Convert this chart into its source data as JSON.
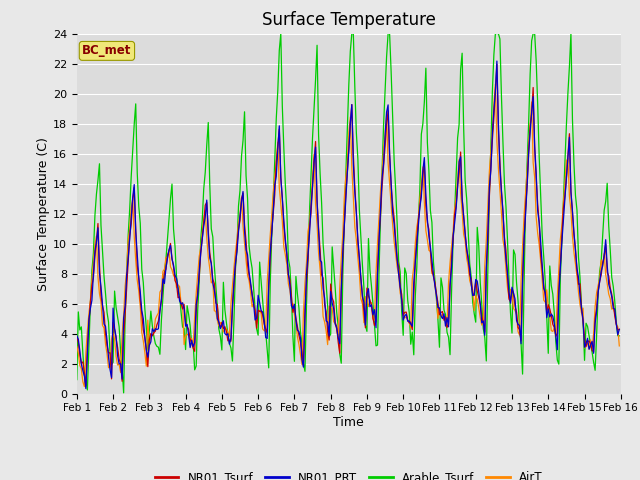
{
  "title": "Surface Temperature",
  "xlabel": "Time",
  "ylabel": "Surface Temperature (C)",
  "ylim": [
    0,
    24
  ],
  "yticks": [
    0,
    2,
    4,
    6,
    8,
    10,
    12,
    14,
    16,
    18,
    20,
    22,
    24
  ],
  "xtick_labels": [
    "Feb 1",
    "Feb 2",
    "Feb 3",
    "Feb 4",
    "Feb 5",
    "Feb 6",
    "Feb 7",
    "Feb 8",
    "Feb 9",
    "Feb 10",
    "Feb 11",
    "Feb 12",
    "Feb 13",
    "Feb 14",
    "Feb 15",
    "Feb 16"
  ],
  "station_label": "BC_met",
  "colors": {
    "NR01_Tsurf": "#cc0000",
    "NR01_PRT": "#0000cc",
    "Arable_Tsurf": "#00cc00",
    "AirT": "#ff8800"
  },
  "fig_facecolor": "#e8e8e8",
  "ax_facecolor": "#dcdcdc",
  "grid_color": "#ffffff",
  "legend_entries": [
    "NR01_Tsurf",
    "NR01_PRT",
    "Arable_Tsurf",
    "AirT"
  ]
}
